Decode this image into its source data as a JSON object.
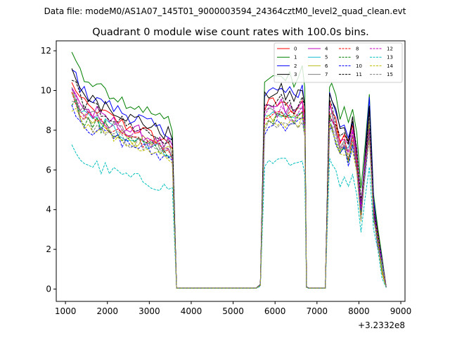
{
  "chart_data": {
    "type": "line",
    "suptitle": "Data file: modeM0/AS1A07_145T01_9000003594_24364cztM0_level2_quad_clean.evt",
    "title": "Quadrant 0 module wise count rates with 100.0s bins.",
    "xlabel": "",
    "ylabel": "",
    "x_offset_label": "+3.2332e8",
    "xlim": [
      780,
      9100
    ],
    "ylim": [
      -0.62,
      12.5
    ],
    "xticks": [
      1000,
      2000,
      3000,
      4000,
      5000,
      6000,
      7000,
      8000,
      9000
    ],
    "xtick_labels": [
      "1000",
      "2000",
      "3000",
      "4000",
      "5000",
      "6000",
      "7000",
      "8000",
      "9000"
    ],
    "yticks": [
      0,
      2,
      4,
      6,
      8,
      10,
      12
    ],
    "ytick_labels": [
      "0",
      "2",
      "4",
      "6",
      "8",
      "10",
      "12"
    ],
    "grid": false,
    "legend_position": "top-right",
    "legend_ncol": 4,
    "base_curve": {
      "x": [
        1150,
        1250,
        1350,
        1450,
        1550,
        1650,
        1750,
        1850,
        1950,
        2050,
        2150,
        2250,
        2350,
        2450,
        2550,
        2650,
        2750,
        2850,
        2950,
        3050,
        3150,
        3250,
        3350,
        3450,
        3550,
        3650,
        3750,
        3850,
        3950,
        4050,
        4150,
        4250,
        4350,
        4450,
        4550,
        4650,
        4750,
        4850,
        4950,
        5050,
        5150,
        5250,
        5350,
        5450,
        5550,
        5650,
        5750,
        5850,
        5950,
        6050,
        6150,
        6250,
        6350,
        6450,
        6550,
        6650,
        6710,
        6750,
        6800,
        6900,
        7000,
        7100,
        7200,
        7300,
        7350,
        7450,
        7550,
        7650,
        7750,
        7850,
        7950,
        8050,
        8150,
        8250,
        8350,
        8450,
        8550,
        8650
      ],
      "y": [
        10.0,
        9.8,
        9.3,
        9.0,
        8.9,
        8.7,
        8.8,
        8.5,
        8.6,
        8.4,
        8.3,
        8.2,
        8.1,
        8.0,
        7.9,
        7.8,
        7.85,
        7.7,
        7.6,
        7.5,
        7.4,
        7.3,
        7.2,
        7.25,
        7.0,
        0.05,
        0.05,
        0.05,
        0.05,
        0.05,
        0.05,
        0.05,
        0.05,
        0.05,
        0.05,
        0.05,
        0.05,
        0.05,
        0.05,
        0.05,
        0.05,
        0.05,
        0.05,
        0.05,
        0.05,
        0.2,
        8.8,
        9.0,
        9.1,
        9.0,
        9.2,
        8.9,
        9.0,
        8.8,
        9.0,
        9.3,
        8.5,
        0.1,
        0.05,
        0.05,
        0.05,
        0.05,
        0.05,
        8.9,
        8.7,
        8.2,
        7.3,
        7.6,
        7.0,
        7.8,
        6.5,
        4.0,
        6.2,
        8.5,
        4.0,
        2.5,
        1.2,
        0.1
      ]
    },
    "series": [
      {
        "name": "0",
        "color": "#ff0000",
        "dash": "solid",
        "scale": 1.03,
        "jitter": 0.35
      },
      {
        "name": "1",
        "color": "#008000",
        "dash": "solid",
        "scale": 1.18,
        "jitter": 0.35
      },
      {
        "name": "2",
        "color": "#0000ff",
        "dash": "solid",
        "scale": 1.1,
        "jitter": 0.35
      },
      {
        "name": "3",
        "color": "#000000",
        "dash": "solid",
        "scale": 1.09,
        "jitter": 0.35
      },
      {
        "name": "4",
        "color": "#bf00bf",
        "dash": "solid",
        "scale": 1.01,
        "jitter": 0.35
      },
      {
        "name": "5",
        "color": "#17becf",
        "dash": "solid",
        "scale": 0.97,
        "jitter": 0.35
      },
      {
        "name": "6",
        "color": "#bcbd22",
        "dash": "solid",
        "scale": 0.96,
        "jitter": 0.35
      },
      {
        "name": "7",
        "color": "#7f7f7f",
        "dash": "solid",
        "scale": 1.0,
        "jitter": 0.35
      },
      {
        "name": "8",
        "color": "#ff0000",
        "dash": "dashed",
        "scale": 0.97,
        "jitter": 0.35
      },
      {
        "name": "9",
        "color": "#008000",
        "dash": "dashed",
        "scale": 0.95,
        "jitter": 0.35
      },
      {
        "name": "10",
        "color": "#0000ff",
        "dash": "dashed",
        "scale": 0.92,
        "jitter": 0.35
      },
      {
        "name": "11",
        "color": "#000000",
        "dash": "dashed",
        "scale": 1.04,
        "jitter": 0.35
      },
      {
        "name": "12",
        "color": "#bf00bf",
        "dash": "dashed",
        "scale": 0.98,
        "jitter": 0.35
      },
      {
        "name": "13",
        "color": "#00bfbf",
        "dash": "dashed",
        "scale": 0.71,
        "jitter": 0.3
      },
      {
        "name": "14",
        "color": "#bfbf00",
        "dash": "dashed",
        "scale": 0.93,
        "jitter": 0.35
      },
      {
        "name": "15",
        "color": "#7f7f7f",
        "dash": "dashed",
        "scale": 0.94,
        "jitter": 0.35
      }
    ]
  }
}
